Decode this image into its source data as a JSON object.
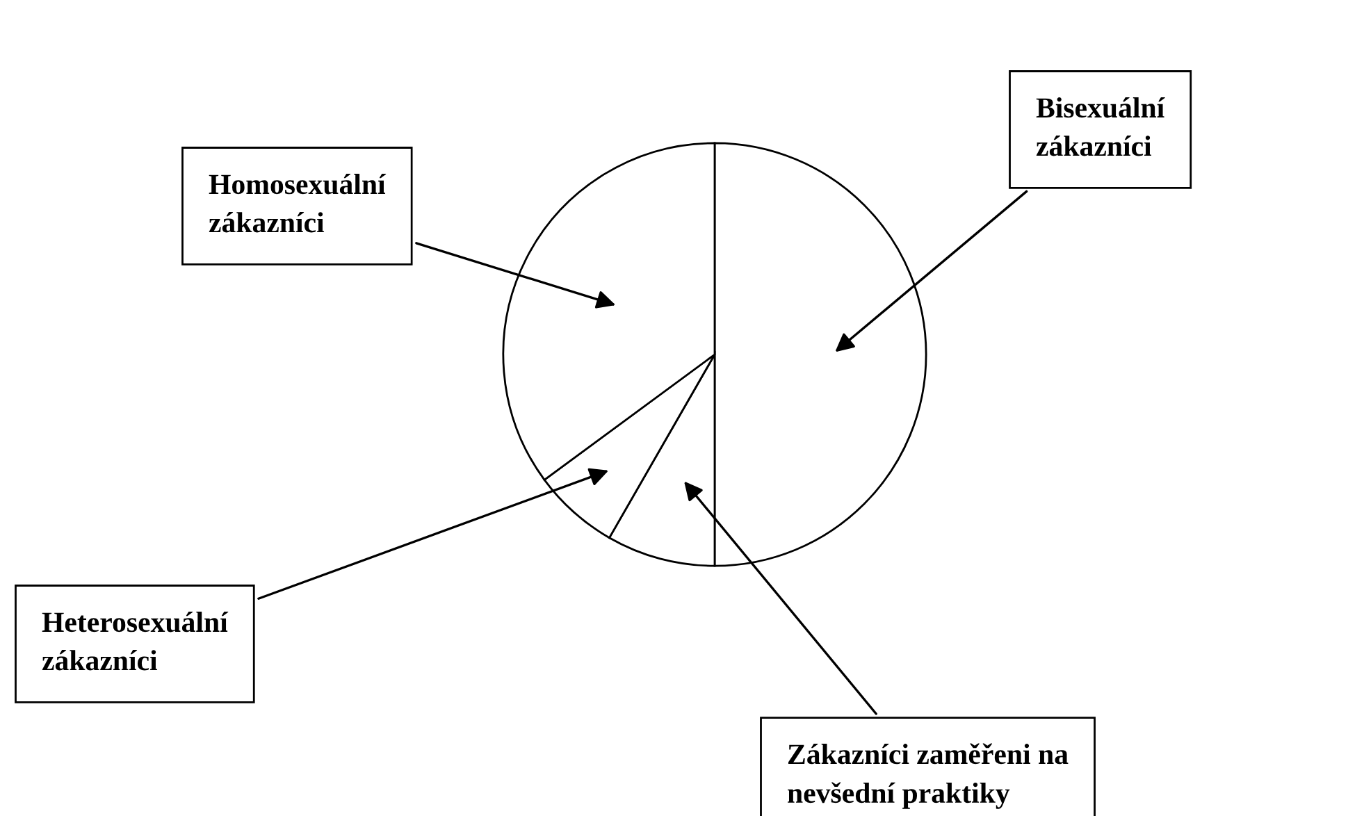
{
  "chart_data": {
    "type": "pie",
    "categories": [
      "Bisexuální\nzákazníci",
      "Zákazníci zaměřeni na\nnevšední praktiky",
      "Heterosexuální\nzákazníci",
      "Homosexuální\nzákazníci"
    ],
    "values": [
      50,
      8.3,
      6.6,
      35.1
    ],
    "colors": [
      "#ffffff",
      "#ffffff",
      "#ffffff",
      "#ffffff"
    ]
  }
}
